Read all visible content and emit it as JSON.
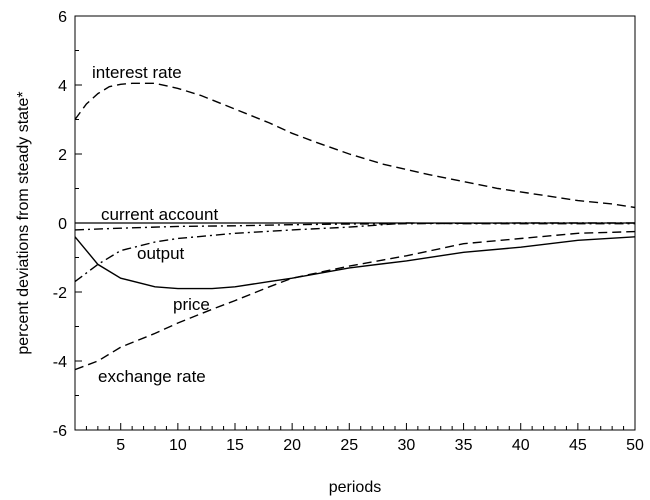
{
  "chart_data": {
    "type": "line",
    "title": "",
    "xlabel": "periods",
    "ylabel": "percent deviations from steady state*",
    "xlim": [
      1,
      50
    ],
    "ylim": [
      -6,
      6
    ],
    "xticks": [
      5,
      10,
      15,
      20,
      25,
      30,
      35,
      40,
      45,
      50
    ],
    "yticks": [
      -6,
      -4,
      -2,
      0,
      2,
      4,
      6
    ],
    "grid": false,
    "legend": "none",
    "zero_line": true,
    "series": [
      {
        "name": "interest rate",
        "style": "dashed",
        "x": [
          1,
          2,
          3,
          4,
          5,
          6,
          7,
          8,
          10,
          12,
          15,
          18,
          20,
          22,
          25,
          28,
          30,
          32,
          35,
          38,
          40,
          42,
          45,
          48,
          50
        ],
        "y": [
          3.0,
          3.45,
          3.75,
          3.95,
          4.02,
          4.05,
          4.05,
          4.05,
          3.9,
          3.7,
          3.3,
          2.9,
          2.6,
          2.35,
          2.0,
          1.7,
          1.55,
          1.4,
          1.2,
          1.0,
          0.9,
          0.8,
          0.65,
          0.55,
          0.45
        ]
      },
      {
        "name": "current account",
        "style": "dash-dot",
        "x": [
          1,
          5,
          10,
          15,
          20,
          25,
          30,
          35,
          40,
          45,
          50
        ],
        "y": [
          -0.2,
          -0.15,
          -0.1,
          -0.08,
          -0.05,
          -0.03,
          -0.02,
          -0.01,
          0.0,
          0.0,
          0.0
        ]
      },
      {
        "name": "output",
        "style": "dash-dot",
        "x": [
          1,
          3,
          5,
          8,
          10,
          15,
          20,
          25,
          30,
          35,
          40,
          45,
          50
        ],
        "y": [
          -1.7,
          -1.2,
          -0.8,
          -0.55,
          -0.45,
          -0.3,
          -0.2,
          -0.12,
          0.0,
          -0.02,
          -0.02,
          -0.02,
          -0.02
        ]
      },
      {
        "name": "price",
        "style": "solid",
        "x": [
          1,
          3,
          5,
          8,
          10,
          13,
          15,
          18,
          20,
          25,
          30,
          35,
          40,
          45,
          50
        ],
        "y": [
          -0.4,
          -1.2,
          -1.6,
          -1.85,
          -1.9,
          -1.9,
          -1.85,
          -1.7,
          -1.6,
          -1.3,
          -1.1,
          -0.85,
          -0.7,
          -0.5,
          -0.4
        ]
      },
      {
        "name": "exchange rate",
        "style": "dashed",
        "x": [
          1,
          3,
          5,
          8,
          10,
          13,
          15,
          18,
          20,
          25,
          30,
          35,
          40,
          45,
          50
        ],
        "y": [
          -4.25,
          -4.0,
          -3.6,
          -3.2,
          -2.9,
          -2.5,
          -2.25,
          -1.85,
          -1.6,
          -1.25,
          -0.95,
          -0.6,
          -0.45,
          -0.3,
          -0.25
        ]
      }
    ]
  },
  "labels": {
    "interest_rate": "interest rate",
    "current_account": "current account",
    "output": "output",
    "price": "price",
    "exchange_rate": "exchange rate"
  }
}
